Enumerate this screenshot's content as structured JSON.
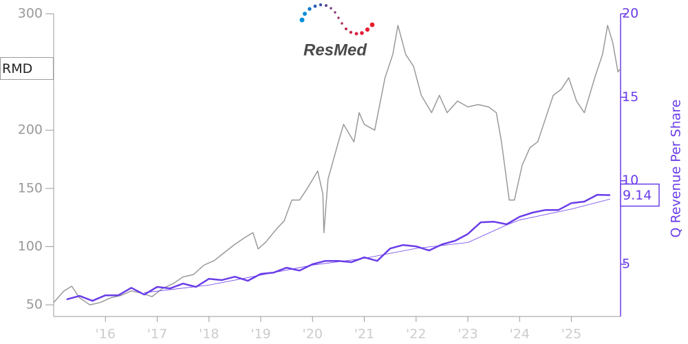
{
  "chart_data": {
    "type": "line",
    "logo_text": "ResMed",
    "y2label": "Q Revenue Per Share",
    "xlim": [
      2015.0,
      2025.95
    ],
    "xticks": [
      {
        "value": 2016,
        "label": "'16"
      },
      {
        "value": 2017,
        "label": "'17"
      },
      {
        "value": 2018,
        "label": "'18"
      },
      {
        "value": 2019,
        "label": "'19"
      },
      {
        "value": 2020,
        "label": "'20"
      },
      {
        "value": 2021,
        "label": "'21"
      },
      {
        "value": 2022,
        "label": "'22"
      },
      {
        "value": 2023,
        "label": "'23"
      },
      {
        "value": 2024,
        "label": "'24"
      },
      {
        "value": 2025,
        "label": "'25"
      }
    ],
    "ylim": [
      40,
      300
    ],
    "yticks": [
      50,
      100,
      150,
      200,
      300
    ],
    "y2lim": [
      1.87,
      20
    ],
    "y2ticks": [
      5,
      10,
      15,
      20
    ],
    "series": [
      {
        "name": "RMD",
        "color": "#999999",
        "axis": "y",
        "width": 1.5,
        "x": [
          2015.0,
          2015.2,
          2015.35,
          2015.5,
          2015.7,
          2015.9,
          2016.1,
          2016.3,
          2016.5,
          2016.7,
          2016.9,
          2017.1,
          2017.3,
          2017.5,
          2017.7,
          2017.9,
          2018.1,
          2018.3,
          2018.5,
          2018.7,
          2018.85,
          2018.95,
          2019.1,
          2019.3,
          2019.45,
          2019.6,
          2019.75,
          2019.9,
          2020.1,
          2020.2,
          2020.22,
          2020.3,
          2020.5,
          2020.6,
          2020.8,
          2020.9,
          2021.0,
          2021.2,
          2021.4,
          2021.55,
          2021.65,
          2021.8,
          2021.95,
          2022.1,
          2022.3,
          2022.45,
          2022.6,
          2022.8,
          2023.0,
          2023.2,
          2023.4,
          2023.55,
          2023.65,
          2023.8,
          2023.9,
          2024.05,
          2024.2,
          2024.35,
          2024.5,
          2024.65,
          2024.8,
          2024.95,
          2025.1,
          2025.25,
          2025.45,
          2025.6,
          2025.7,
          2025.8,
          2025.9,
          2025.95
        ],
        "values": [
          52,
          62,
          66,
          56,
          50,
          52,
          56,
          58,
          62,
          60,
          57,
          64,
          68,
          74,
          76,
          84,
          88,
          95,
          102,
          108,
          112,
          98,
          104,
          115,
          122,
          140,
          140,
          150,
          165,
          145,
          112,
          158,
          190,
          205,
          190,
          215,
          205,
          200,
          245,
          265,
          290,
          265,
          255,
          230,
          215,
          230,
          215,
          225,
          220,
          222,
          220,
          215,
          190,
          140,
          140,
          170,
          185,
          190,
          210,
          230,
          235,
          245,
          225,
          215,
          245,
          265,
          290,
          275,
          250,
          253
        ]
      },
      {
        "color": "#6a3de8",
        "axis": "y2",
        "width": 2.5,
        "x": [
          2015.25,
          2015.5,
          2015.75,
          2016.0,
          2016.25,
          2016.5,
          2016.75,
          2017.0,
          2017.25,
          2017.5,
          2017.75,
          2018.0,
          2018.25,
          2018.5,
          2018.75,
          2019.0,
          2019.25,
          2019.5,
          2019.75,
          2020.0,
          2020.25,
          2020.5,
          2020.75,
          2021.0,
          2021.25,
          2021.5,
          2021.75,
          2022.0,
          2022.25,
          2022.5,
          2022.75,
          2023.0,
          2023.25,
          2023.5,
          2023.75,
          2024.0,
          2024.25,
          2024.5,
          2024.75,
          2025.0,
          2025.25,
          2025.5,
          2025.75
        ],
        "values": [
          2.89,
          3.1,
          2.81,
          3.14,
          3.14,
          3.59,
          3.18,
          3.64,
          3.55,
          3.84,
          3.64,
          4.13,
          4.05,
          4.25,
          4.01,
          4.42,
          4.5,
          4.79,
          4.62,
          5.0,
          5.2,
          5.2,
          5.12,
          5.41,
          5.2,
          5.94,
          6.15,
          6.07,
          5.82,
          6.19,
          6.4,
          6.81,
          7.51,
          7.55,
          7.39,
          7.84,
          8.09,
          8.25,
          8.25,
          8.66,
          8.75,
          9.16,
          9.14
        ]
      },
      {
        "color": "#6a3de8",
        "axis": "y2",
        "width": 0.8,
        "x": [
          2016.75,
          2018.0,
          2019.0,
          2020.0,
          2021.0,
          2022.0,
          2023.0,
          2023.75,
          2024.0,
          2025.0,
          2025.75
        ],
        "values": [
          3.3,
          3.75,
          4.35,
          4.95,
          5.35,
          5.95,
          6.3,
          7.35,
          7.65,
          8.3,
          8.9
        ]
      }
    ]
  }
}
